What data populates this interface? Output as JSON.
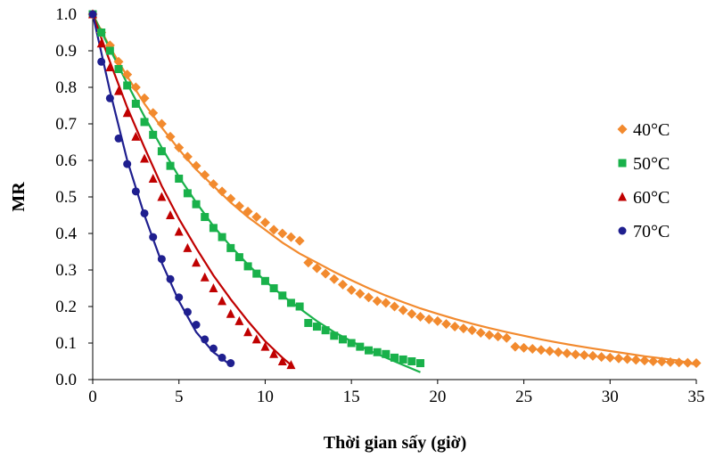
{
  "chart_data": {
    "type": "scatter",
    "title": "",
    "xlabel": "Thời gian sấy (giờ)",
    "ylabel": "MR",
    "xlim": [
      0,
      35
    ],
    "ylim": [
      0,
      1.0
    ],
    "x_ticks": [
      "0",
      "5",
      "10",
      "15",
      "20",
      "25",
      "30",
      "35"
    ],
    "y_ticks": [
      "0.0",
      "0.1",
      "0.2",
      "0.3",
      "0.4",
      "0.5",
      "0.6",
      "0.7",
      "0.8",
      "0.9",
      "1.0"
    ],
    "grid": false,
    "legend_position": "right",
    "series": [
      {
        "name": "40°C",
        "color": "#F28A2E",
        "marker": "diamond",
        "x": [
          0,
          0.5,
          1,
          1.5,
          2,
          2.5,
          3,
          3.5,
          4,
          4.5,
          5,
          5.5,
          6,
          6.5,
          7,
          7.5,
          8,
          8.5,
          9,
          9.5,
          10,
          10.5,
          11,
          11.5,
          12,
          12.5,
          13,
          13.5,
          14,
          14.5,
          15,
          15.5,
          16,
          16.5,
          17,
          17.5,
          18,
          18.5,
          19,
          19.5,
          20,
          20.5,
          21,
          21.5,
          22,
          22.5,
          23,
          23.5,
          24,
          24.5,
          25,
          25.5,
          26,
          26.5,
          27,
          27.5,
          28,
          28.5,
          29,
          29.5,
          30,
          30.5,
          31,
          31.5,
          32,
          32.5,
          33,
          33.5,
          34,
          34.5,
          35
        ],
        "y": [
          1.0,
          0.95,
          0.915,
          0.87,
          0.835,
          0.8,
          0.77,
          0.73,
          0.7,
          0.665,
          0.635,
          0.61,
          0.585,
          0.56,
          0.535,
          0.515,
          0.495,
          0.475,
          0.46,
          0.445,
          0.43,
          0.41,
          0.4,
          0.39,
          0.38,
          0.32,
          0.305,
          0.29,
          0.275,
          0.26,
          0.245,
          0.235,
          0.225,
          0.215,
          0.21,
          0.2,
          0.19,
          0.18,
          0.172,
          0.165,
          0.16,
          0.152,
          0.145,
          0.14,
          0.135,
          0.128,
          0.122,
          0.118,
          0.114,
          0.09,
          0.087,
          0.084,
          0.081,
          0.078,
          0.075,
          0.072,
          0.069,
          0.067,
          0.065,
          0.062,
          0.06,
          0.058,
          0.056,
          0.054,
          0.052,
          0.05,
          0.049,
          0.048,
          0.047,
          0.046,
          0.045
        ],
        "fit_x": [
          0,
          1,
          2,
          3,
          4,
          5,
          6,
          7,
          8,
          9,
          10,
          11,
          12,
          13,
          14,
          15,
          16,
          17,
          18,
          19,
          20,
          21,
          22,
          23,
          24,
          25,
          26,
          27,
          28,
          29,
          30,
          31,
          32,
          33,
          34,
          35
        ],
        "fit_y": [
          1.0,
          0.91,
          0.83,
          0.755,
          0.69,
          0.63,
          0.575,
          0.53,
          0.485,
          0.445,
          0.41,
          0.375,
          0.345,
          0.32,
          0.295,
          0.272,
          0.25,
          0.23,
          0.212,
          0.195,
          0.18,
          0.166,
          0.153,
          0.141,
          0.13,
          0.12,
          0.11,
          0.101,
          0.093,
          0.085,
          0.078,
          0.071,
          0.064,
          0.058,
          0.052,
          0.04
        ]
      },
      {
        "name": "50°C",
        "color": "#19B14A",
        "marker": "square",
        "x": [
          0,
          0.5,
          1,
          1.5,
          2,
          2.5,
          3,
          3.5,
          4,
          4.5,
          5,
          5.5,
          6,
          6.5,
          7,
          7.5,
          8,
          8.5,
          9,
          9.5,
          10,
          10.5,
          11,
          11.5,
          12,
          12.5,
          13,
          13.5,
          14,
          14.5,
          15,
          15.5,
          16,
          16.5,
          17,
          17.5,
          18,
          18.5,
          19
        ],
        "y": [
          1.0,
          0.95,
          0.9,
          0.85,
          0.805,
          0.755,
          0.705,
          0.67,
          0.625,
          0.585,
          0.55,
          0.51,
          0.48,
          0.445,
          0.415,
          0.39,
          0.36,
          0.335,
          0.31,
          0.29,
          0.27,
          0.25,
          0.23,
          0.21,
          0.2,
          0.155,
          0.145,
          0.135,
          0.12,
          0.11,
          0.1,
          0.09,
          0.08,
          0.075,
          0.07,
          0.06,
          0.055,
          0.05,
          0.045
        ],
        "fit_x": [
          0,
          1,
          2,
          3,
          4,
          5,
          6,
          7,
          8,
          9,
          10,
          11,
          12,
          13,
          14,
          15,
          16,
          17,
          18,
          19
        ],
        "fit_y": [
          1.0,
          0.905,
          0.81,
          0.72,
          0.635,
          0.555,
          0.485,
          0.42,
          0.365,
          0.315,
          0.27,
          0.23,
          0.195,
          0.16,
          0.13,
          0.105,
          0.08,
          0.06,
          0.04,
          0.02
        ]
      },
      {
        "name": "60°C",
        "color": "#C00000",
        "marker": "triangle",
        "x": [
          0,
          0.5,
          1,
          1.5,
          2,
          2.5,
          3,
          3.5,
          4,
          4.5,
          5,
          5.5,
          6,
          6.5,
          7,
          7.5,
          8,
          8.5,
          9,
          9.5,
          10,
          10.5,
          11,
          11.5
        ],
        "y": [
          1.0,
          0.92,
          0.855,
          0.79,
          0.73,
          0.665,
          0.605,
          0.55,
          0.5,
          0.45,
          0.405,
          0.36,
          0.32,
          0.28,
          0.25,
          0.215,
          0.18,
          0.16,
          0.13,
          0.11,
          0.09,
          0.07,
          0.05,
          0.04
        ],
        "fit_x": [
          0,
          1,
          2,
          3,
          4,
          5,
          6,
          7,
          8,
          9,
          10,
          11,
          11.5
        ],
        "fit_y": [
          1.0,
          0.87,
          0.745,
          0.635,
          0.53,
          0.44,
          0.36,
          0.285,
          0.22,
          0.16,
          0.105,
          0.06,
          0.04
        ]
      },
      {
        "name": "70°C",
        "color": "#1F1F8F",
        "marker": "circle",
        "x": [
          0,
          0.5,
          1,
          1.5,
          2,
          2.5,
          3,
          3.5,
          4,
          4.5,
          5,
          5.5,
          6,
          6.5,
          7,
          7.5,
          8
        ],
        "y": [
          1.0,
          0.87,
          0.77,
          0.66,
          0.59,
          0.515,
          0.455,
          0.39,
          0.33,
          0.275,
          0.225,
          0.185,
          0.15,
          0.11,
          0.085,
          0.06,
          0.045
        ],
        "fit_x": [
          0,
          1,
          2,
          3,
          4,
          5,
          6,
          7,
          8
        ],
        "fit_y": [
          1.0,
          0.79,
          0.6,
          0.45,
          0.32,
          0.215,
          0.13,
          0.075,
          0.04
        ]
      }
    ]
  }
}
